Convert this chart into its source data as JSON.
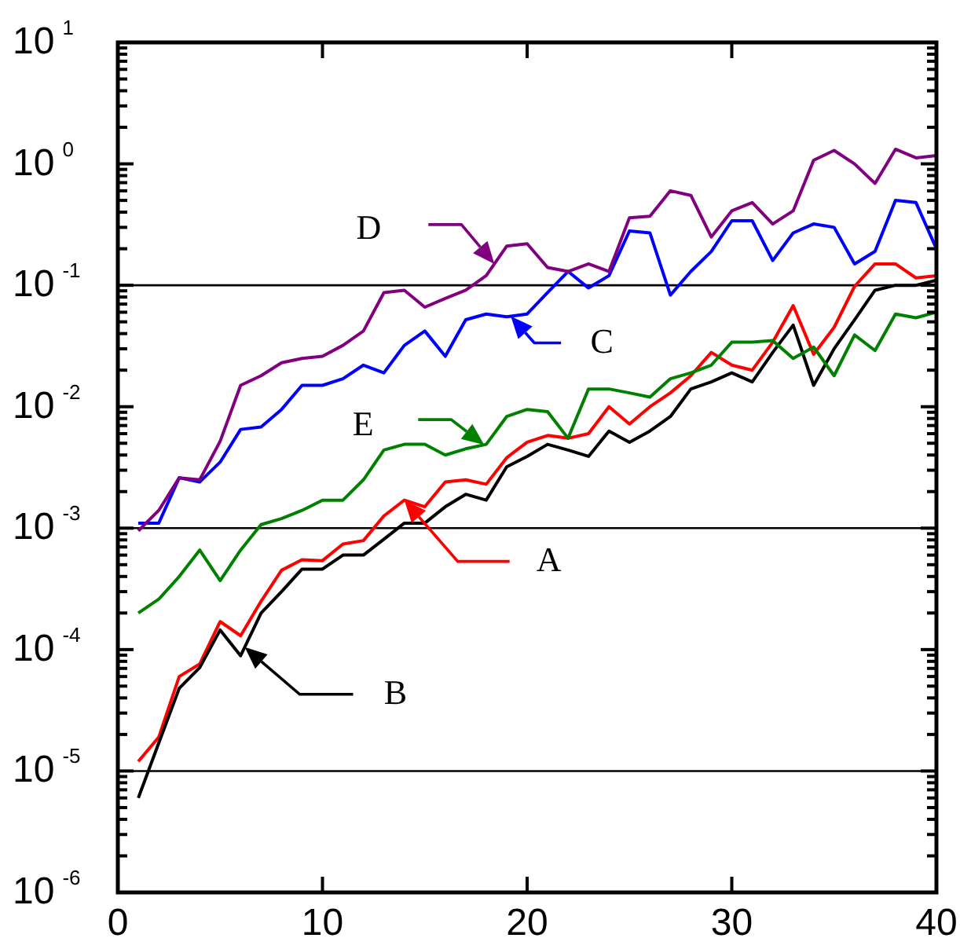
{
  "chart_data": {
    "type": "line",
    "log": "y",
    "grid": false,
    "legend": "center",
    "marker": "none",
    "line_style": "solid",
    "xlim": [
      0,
      40
    ],
    "xticks": [
      0,
      10,
      20,
      30,
      40
    ],
    "ylim": [
      1e-06,
      10
    ],
    "yticks": [
      {
        "value": 1e-06,
        "label": "10$^{-6}$"
      },
      {
        "value": 2e-06,
        "label": null
      },
      {
        "value": 3e-06,
        "label": null
      },
      {
        "value": 4e-06,
        "label": null
      },
      {
        "value": 5e-06,
        "label": null
      },
      {
        "value": 6e-06,
        "label": null
      },
      {
        "value": 7e-06,
        "label": null
      },
      {
        "value": 8e-06,
        "label": null
      },
      {
        "value": 9e-06,
        "label": null
      },
      {
        "value": 1e-05,
        "label": "10$^{-5}$"
      },
      {
        "value": 2e-05,
        "label": null
      },
      {
        "value": 3e-05,
        "label": null
      },
      {
        "value": 4e-05,
        "label": null
      },
      {
        "value": 5e-05,
        "label": null
      },
      {
        "value": 6e-05,
        "label": null
      },
      {
        "value": 7e-05,
        "label": null
      },
      {
        "value": 8e-05,
        "label": null
      },
      {
        "value": 9e-05,
        "label": null
      },
      {
        "value": 0.0001,
        "label": "10$^{-4}$"
      },
      {
        "value": 0.0002,
        "label": null
      },
      {
        "value": 0.0003,
        "label": null
      },
      {
        "value": 0.0004,
        "label": null
      },
      {
        "value": 0.0005,
        "label": null
      },
      {
        "value": 0.0006,
        "label": null
      },
      {
        "value": 0.0007,
        "label": null
      },
      {
        "value": 0.0008,
        "label": null
      },
      {
        "value": 0.0009,
        "label": null
      },
      {
        "value": 0.001,
        "label": "10$^{-3}$"
      },
      {
        "value": 0.002,
        "label": null
      },
      {
        "value": 0.003,
        "label": null
      },
      {
        "value": 0.004,
        "label": null
      },
      {
        "value": 0.005,
        "label": null
      },
      {
        "value": 0.006,
        "label": null
      },
      {
        "value": 0.007,
        "label": null
      },
      {
        "value": 0.008,
        "label": null
      },
      {
        "value": 0.009,
        "label": null
      },
      {
        "value": 0.01,
        "label": "10$^{-2}$"
      },
      {
        "value": 0.02,
        "label": null
      },
      {
        "value": 0.03,
        "label": null
      },
      {
        "value": 0.04,
        "label": null
      },
      {
        "value": 0.05,
        "label": null
      },
      {
        "value": 0.06,
        "label": null
      },
      {
        "value": 0.07,
        "label": null
      },
      {
        "value": 0.08,
        "label": null
      },
      {
        "value": 0.09,
        "label": null
      },
      {
        "value": 0.1,
        "label": "10$^{-1}$"
      },
      {
        "value": 0.2,
        "label": null
      },
      {
        "value": 0.3,
        "label": null
      },
      {
        "value": 0.4,
        "label": null
      },
      {
        "value": 0.5,
        "label": null
      },
      {
        "value": 0.6,
        "label": null
      },
      {
        "value": 0.7,
        "label": null
      },
      {
        "value": 0.8,
        "label": null
      },
      {
        "value": 0.9,
        "label": null
      },
      {
        "value": 1,
        "label": "10$^{0}$"
      },
      {
        "value": 2,
        "label": null
      },
      {
        "value": 3,
        "label": null
      },
      {
        "value": 4,
        "label": null
      },
      {
        "value": 5,
        "label": null
      },
      {
        "value": 6,
        "label": null
      },
      {
        "value": 7,
        "label": null
      },
      {
        "value": 8,
        "label": null
      },
      {
        "value": 9,
        "label": null
      },
      {
        "value": 10,
        "label": "10$^{1}$"
      }
    ],
    "x": [
      1,
      2,
      3,
      4,
      5,
      6,
      7,
      8,
      9,
      10,
      11,
      12,
      13,
      14,
      15,
      16,
      17,
      18,
      19,
      20,
      21,
      22,
      23,
      24,
      25,
      26,
      27,
      28,
      29,
      30,
      31,
      32,
      33,
      34,
      35,
      36,
      37,
      38,
      39,
      40
    ],
    "series": [
      {
        "name": "A",
        "color": "#ff0000",
        "values": [
          1.2e-05,
          1.9e-05,
          6e-05,
          7.6e-05,
          0.00017,
          0.00013,
          0.00025,
          0.00045,
          0.00055,
          0.00054,
          0.00074,
          0.00079,
          0.00126,
          0.0017,
          0.0015,
          0.0024,
          0.0025,
          0.0023,
          0.0038,
          0.0051,
          0.0058,
          0.0055,
          0.006,
          0.01,
          0.0072,
          0.01,
          0.013,
          0.018,
          0.028,
          0.022,
          0.02,
          0.034,
          0.068,
          0.027,
          0.045,
          0.098,
          0.15,
          0.15,
          0.115,
          0.12
        ]
      },
      {
        "name": "B",
        "color": "#000000",
        "values": [
          6e-06,
          1.7e-05,
          4.8e-05,
          7.1e-05,
          0.000145,
          8.9e-05,
          0.0002,
          0.0003,
          0.00046,
          0.00046,
          0.0006,
          0.0006,
          0.00081,
          0.0011,
          0.0011,
          0.0015,
          0.0019,
          0.0017,
          0.0032,
          0.0039,
          0.0049,
          0.0044,
          0.0039,
          0.0063,
          0.0051,
          0.0063,
          0.0083,
          0.014,
          0.016,
          0.019,
          0.016,
          0.028,
          0.047,
          0.015,
          0.03,
          0.052,
          0.091,
          0.1,
          0.1,
          0.11
        ]
      },
      {
        "name": "C",
        "color": "#0000ff",
        "values": [
          0.0011,
          0.0011,
          0.0026,
          0.0024,
          0.0035,
          0.0065,
          0.0068,
          0.0095,
          0.015,
          0.015,
          0.017,
          0.022,
          0.019,
          0.032,
          0.042,
          0.026,
          0.052,
          0.058,
          0.055,
          0.058,
          0.087,
          0.13,
          0.095,
          0.12,
          0.28,
          0.27,
          0.083,
          0.13,
          0.19,
          0.34,
          0.34,
          0.16,
          0.27,
          0.32,
          0.3,
          0.15,
          0.19,
          0.5,
          0.48,
          0.2
        ]
      },
      {
        "name": "D",
        "color": "#800080",
        "values": [
          0.00095,
          0.0014,
          0.0026,
          0.0025,
          0.0052,
          0.015,
          0.018,
          0.023,
          0.025,
          0.026,
          0.032,
          0.042,
          0.087,
          0.091,
          0.066,
          0.078,
          0.091,
          0.12,
          0.21,
          0.22,
          0.14,
          0.13,
          0.15,
          0.13,
          0.36,
          0.37,
          0.6,
          0.55,
          0.25,
          0.41,
          0.48,
          0.32,
          0.41,
          1.07,
          1.29,
          1.0,
          0.69,
          1.32,
          1.12,
          1.17
        ]
      },
      {
        "name": "E",
        "color": "#008000",
        "values": [
          0.0002,
          0.00026,
          0.0004,
          0.00066,
          0.00037,
          0.00066,
          0.00107,
          0.0012,
          0.0014,
          0.0017,
          0.0017,
          0.0025,
          0.0044,
          0.0049,
          0.0049,
          0.004,
          0.0045,
          0.0049,
          0.0083,
          0.0095,
          0.0091,
          0.0055,
          0.014,
          0.014,
          0.013,
          0.012,
          0.017,
          0.019,
          0.022,
          0.034,
          0.034,
          0.035,
          0.025,
          0.031,
          0.018,
          0.039,
          0.029,
          0.058,
          0.054,
          0.06
        ]
      }
    ],
    "ref_lines": [
      {
        "axis": "y",
        "value": 0.1,
        "color": "#000000"
      },
      {
        "axis": "y",
        "value": 0.001,
        "color": "#000000"
      },
      {
        "axis": "y",
        "value": 1e-05,
        "color": "#000000"
      }
    ]
  }
}
